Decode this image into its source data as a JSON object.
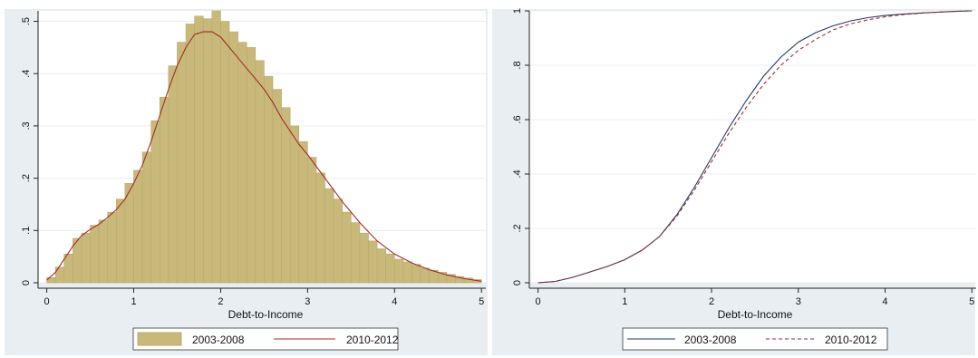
{
  "colors": {
    "outer_bg": "#E8EEF2",
    "plot_bg": "#FFFFFF",
    "grid": "#E8EEF2",
    "bar_fill": "#C8B97A",
    "bar_stroke": "#B9AA6A",
    "series_2003_2008_cdf": "#1F3A6E",
    "series_2010_2012": "#A52A2A"
  },
  "chart_data": [
    {
      "type": "bar",
      "title": "",
      "xlabel": "Debt-to-Income",
      "ylabel": "",
      "xlim": [
        -0.1,
        5.05
      ],
      "ylim": [
        0,
        0.52
      ],
      "xticks": [
        0,
        1,
        2,
        3,
        4,
        5
      ],
      "xtick_labels": [
        "0",
        "1",
        "2",
        "3",
        "4",
        "5"
      ],
      "yticks": [
        0,
        0.1,
        0.2,
        0.3,
        0.4,
        0.5
      ],
      "ytick_labels": [
        "0",
        ".1",
        ".2",
        ".3",
        ".4",
        ".5"
      ],
      "grid": true,
      "legend": {
        "placement": "bottom",
        "entries": [
          "2003-2008",
          "2010-2012"
        ]
      },
      "series": [
        {
          "name": "2003-2008",
          "type": "histogram",
          "bin_width": 0.1,
          "bin_starts": [
            0.0,
            0.1,
            0.2,
            0.3,
            0.4,
            0.5,
            0.6,
            0.7,
            0.8,
            0.9,
            1.0,
            1.1,
            1.2,
            1.3,
            1.4,
            1.5,
            1.6,
            1.7,
            1.8,
            1.9,
            2.0,
            2.1,
            2.2,
            2.3,
            2.4,
            2.5,
            2.6,
            2.7,
            2.8,
            2.9,
            3.0,
            3.1,
            3.2,
            3.3,
            3.4,
            3.5,
            3.6,
            3.7,
            3.8,
            3.9,
            4.0,
            4.1,
            4.2,
            4.3,
            4.4,
            4.5,
            4.6,
            4.7,
            4.8,
            4.9
          ],
          "values": [
            0.01,
            0.03,
            0.055,
            0.085,
            0.095,
            0.11,
            0.12,
            0.135,
            0.16,
            0.19,
            0.215,
            0.25,
            0.31,
            0.355,
            0.415,
            0.46,
            0.495,
            0.51,
            0.505,
            0.52,
            0.5,
            0.48,
            0.46,
            0.45,
            0.425,
            0.395,
            0.37,
            0.335,
            0.3,
            0.27,
            0.24,
            0.21,
            0.18,
            0.16,
            0.135,
            0.115,
            0.095,
            0.08,
            0.065,
            0.055,
            0.045,
            0.04,
            0.035,
            0.028,
            0.024,
            0.02,
            0.016,
            0.012,
            0.009,
            0.006
          ]
        },
        {
          "name": "2010-2012",
          "type": "line",
          "x": [
            0.0,
            0.1,
            0.2,
            0.3,
            0.4,
            0.5,
            0.6,
            0.7,
            0.8,
            0.9,
            1.0,
            1.1,
            1.2,
            1.3,
            1.4,
            1.5,
            1.6,
            1.7,
            1.8,
            1.9,
            2.0,
            2.1,
            2.2,
            2.3,
            2.4,
            2.5,
            2.6,
            2.7,
            2.8,
            2.9,
            3.0,
            3.2,
            3.4,
            3.6,
            3.8,
            4.0,
            4.2,
            4.4,
            4.6,
            4.8,
            5.0
          ],
          "y": [
            0.005,
            0.02,
            0.045,
            0.07,
            0.09,
            0.102,
            0.112,
            0.125,
            0.14,
            0.16,
            0.19,
            0.225,
            0.27,
            0.32,
            0.37,
            0.415,
            0.45,
            0.475,
            0.48,
            0.48,
            0.47,
            0.45,
            0.43,
            0.41,
            0.39,
            0.37,
            0.345,
            0.315,
            0.29,
            0.265,
            0.245,
            0.2,
            0.155,
            0.115,
            0.08,
            0.055,
            0.038,
            0.025,
            0.015,
            0.008,
            0.003
          ]
        }
      ]
    },
    {
      "type": "line",
      "title": "",
      "xlabel": "Debt-to-Income",
      "ylabel": "",
      "xlim": [
        -0.1,
        5.05
      ],
      "ylim": [
        0,
        1
      ],
      "xticks": [
        0,
        1,
        2,
        3,
        4,
        5
      ],
      "xtick_labels": [
        "0",
        "1",
        "2",
        "3",
        "4",
        "5"
      ],
      "yticks": [
        0,
        0.2,
        0.4,
        0.6,
        0.8,
        1.0
      ],
      "ytick_labels": [
        "0",
        ".2",
        ".4",
        ".6",
        ".8",
        "1"
      ],
      "grid": true,
      "legend": {
        "placement": "bottom",
        "entries": [
          "2003-2008",
          "2010-2012"
        ]
      },
      "series": [
        {
          "name": "2003-2008",
          "style": "solid",
          "x": [
            0.0,
            0.2,
            0.4,
            0.6,
            0.8,
            1.0,
            1.2,
            1.4,
            1.6,
            1.8,
            2.0,
            2.2,
            2.4,
            2.6,
            2.8,
            3.0,
            3.2,
            3.4,
            3.6,
            3.8,
            4.0,
            4.2,
            4.4,
            4.6,
            4.8,
            5.0
          ],
          "y": [
            0.0,
            0.005,
            0.02,
            0.04,
            0.06,
            0.085,
            0.12,
            0.17,
            0.25,
            0.35,
            0.46,
            0.57,
            0.67,
            0.76,
            0.83,
            0.885,
            0.92,
            0.945,
            0.963,
            0.975,
            0.983,
            0.988,
            0.992,
            0.995,
            0.998,
            1.0
          ]
        },
        {
          "name": "2010-2012",
          "style": "dashed",
          "x": [
            0.0,
            0.2,
            0.4,
            0.6,
            0.8,
            1.0,
            1.2,
            1.4,
            1.6,
            1.8,
            2.0,
            2.2,
            2.4,
            2.6,
            2.8,
            3.0,
            3.2,
            3.4,
            3.6,
            3.8,
            4.0,
            4.2,
            4.4,
            4.6,
            4.8,
            5.0
          ],
          "y": [
            0.0,
            0.005,
            0.02,
            0.04,
            0.06,
            0.085,
            0.12,
            0.17,
            0.245,
            0.34,
            0.445,
            0.55,
            0.645,
            0.73,
            0.8,
            0.855,
            0.895,
            0.93,
            0.952,
            0.967,
            0.978,
            0.986,
            0.991,
            0.995,
            0.998,
            1.0
          ]
        }
      ]
    }
  ]
}
